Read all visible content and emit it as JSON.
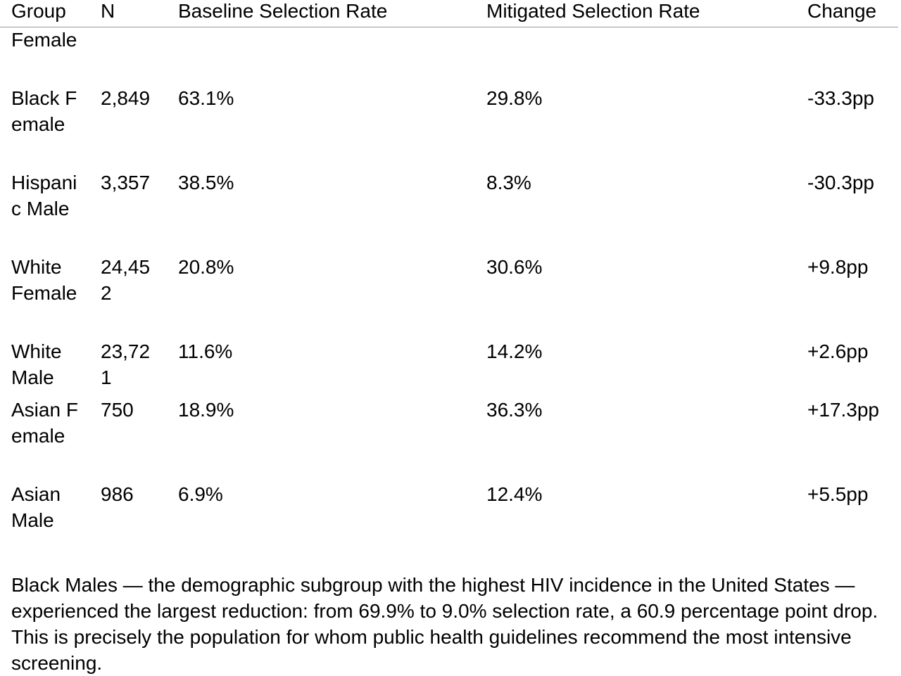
{
  "table": {
    "headers": {
      "group": "Group",
      "n": "N",
      "baseline": "Baseline Selection Rate",
      "mitigated": "Mitigated Selection Rate",
      "change": "Change"
    },
    "rows": [
      {
        "group": "Female",
        "n": "",
        "baseline": "",
        "mitigated": "",
        "change": ""
      },
      {
        "group": "Black Female",
        "n": "2,849",
        "baseline": "63.1%",
        "mitigated": "29.8%",
        "change": "-33.3pp"
      },
      {
        "group": "Hispanic Male",
        "n": "3,357",
        "baseline": "38.5%",
        "mitigated": "8.3%",
        "change": "-30.3pp"
      },
      {
        "group": "White Female",
        "n": "24,452",
        "baseline": "20.8%",
        "mitigated": "30.6%",
        "change": "+9.8pp"
      },
      {
        "group": "White Male",
        "n": "23,721",
        "baseline": "11.6%",
        "mitigated": "14.2%",
        "change": "+2.6pp"
      },
      {
        "group": "Asian Female",
        "n": "750",
        "baseline": "18.9%",
        "mitigated": "36.3%",
        "change": "+17.3pp"
      },
      {
        "group": "Asian Male",
        "n": "986",
        "baseline": "6.9%",
        "mitigated": "12.4%",
        "change": "+5.5pp"
      }
    ]
  },
  "summary": "Black Males — the demographic subgroup with the highest HIV incidence in the United States — experienced the largest reduction: from 69.9% to 9.0% selection rate, a 60.9 percentage point drop. This is precisely the population for whom public health guidelines recommend the most intensive screening."
}
